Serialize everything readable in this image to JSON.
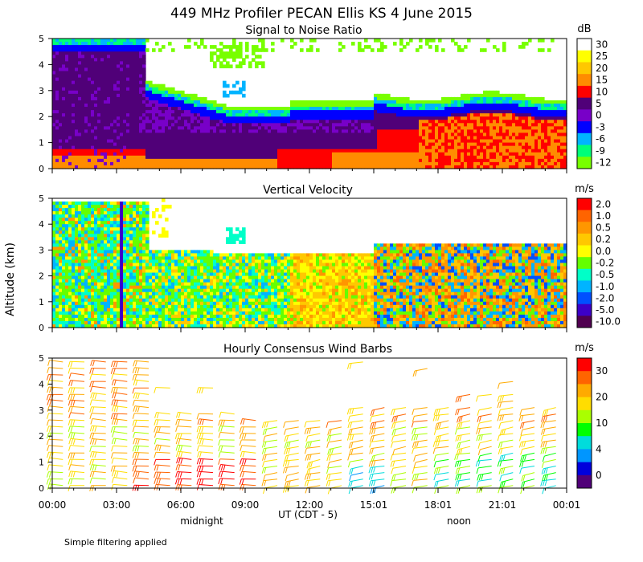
{
  "figure": {
    "title": "449 MHz Profiler PECAN Ellis KS  4 June 2015",
    "y_axis_label": "Altitude (km)",
    "x_axis_label": "UT  (CDT - 5)",
    "x_ticks": [
      "00:00",
      "03:00",
      "06:00",
      "09:00",
      "12:00",
      "15:01",
      "18:01",
      "21:01",
      "00:01"
    ],
    "sub_labels": {
      "midnight": "midnight",
      "noon": "noon"
    },
    "footnote": "Simple filtering applied"
  },
  "chart_data": [
    {
      "type": "heatmap",
      "title": "Signal to Noise Ratio",
      "colorbar_unit": "dB",
      "colorbar_labels": [
        "30",
        "25",
        "20",
        "15",
        "10",
        "5",
        "0",
        "-3",
        "-6",
        "-9",
        "-12"
      ],
      "colors": [
        "#ffffff",
        "#ffff00",
        "#ffc800",
        "#ff8c00",
        "#ff0000",
        "#500078",
        "#7800c8",
        "#0000ff",
        "#00b4ff",
        "#00ff78",
        "#78ff00"
      ],
      "ylim": [
        0,
        5
      ],
      "yticks": [
        "0",
        "1",
        "2",
        "3",
        "4",
        "5"
      ],
      "xlim_hours": [
        0,
        24
      ]
    },
    {
      "type": "heatmap",
      "title": "Vertical Velocity",
      "colorbar_unit": "m/s",
      "colorbar_labels": [
        "2.0",
        "1.0",
        "0.5",
        "0.2",
        "0.0",
        "-0.2",
        "-0.5",
        "-1.0",
        "-2.0",
        "-5.0",
        "-10.0"
      ],
      "colors": [
        "#ff0000",
        "#ff6400",
        "#ff9600",
        "#ffc800",
        "#ffff00",
        "#64ff00",
        "#00ffc8",
        "#00b4ff",
        "#0050ff",
        "#3c00c8",
        "#500050"
      ],
      "ylim": [
        0,
        5
      ],
      "yticks": [
        "0",
        "1",
        "2",
        "3",
        "4",
        "5"
      ],
      "xlim_hours": [
        0,
        24
      ]
    },
    {
      "type": "scatter",
      "title": "Hourly Consensus Wind Barbs",
      "colorbar_unit": "m/s",
      "colorbar_labels": [
        "30",
        "20",
        "10",
        "4",
        "0"
      ],
      "colors": [
        "#ff0000",
        "#ff6400",
        "#ffaa00",
        "#ffdd00",
        "#aaff00",
        "#00ff00",
        "#00dcdc",
        "#0096ff",
        "#0000dc",
        "#500078"
      ],
      "ylim": [
        0,
        5
      ],
      "yticks": [
        "0",
        "1",
        "2",
        "3",
        "4",
        "5"
      ],
      "xlim_hours": [
        0,
        24
      ]
    }
  ]
}
